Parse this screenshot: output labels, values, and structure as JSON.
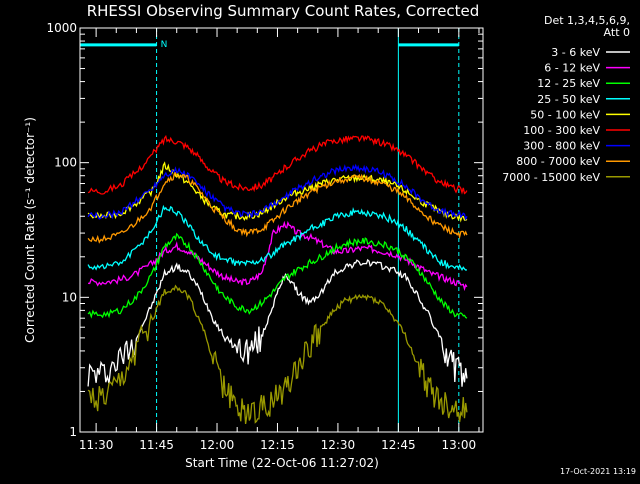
{
  "chart_data": {
    "type": "line",
    "title": "RHESSI Observing Summary Count Rates, Corrected",
    "xlabel": "Start Time (22-Oct-06 11:27:02)",
    "ylabel": "Corrected Count Rate (s⁻¹ detector⁻¹)",
    "yscale": "log",
    "ylim": [
      1,
      1000
    ],
    "y_ticks": [
      {
        "value": 1,
        "label": "1"
      },
      {
        "value": 10,
        "label": "10"
      },
      {
        "value": 100,
        "label": "100"
      },
      {
        "value": 1000,
        "label": "1000"
      }
    ],
    "xlim_minutes": [
      686,
      786
    ],
    "x_ticks": [
      {
        "value": 690,
        "label": "11:30"
      },
      {
        "value": 705,
        "label": "11:45"
      },
      {
        "value": 720,
        "label": "12:00"
      },
      {
        "value": 735,
        "label": "12:15"
      },
      {
        "value": 750,
        "label": "12:30"
      },
      {
        "value": 765,
        "label": "12:45"
      },
      {
        "value": 780,
        "label": "13:00"
      }
    ],
    "legend_header": [
      "Det 1,3,4,5,6,9,",
      "Att 0"
    ],
    "legend_position": "outside-right",
    "x": [
      688,
      692,
      696,
      700,
      704,
      707,
      710,
      713,
      716,
      719,
      722,
      725,
      728,
      731,
      734,
      737,
      740,
      743,
      746,
      749,
      752,
      755,
      758,
      761,
      764,
      767,
      770,
      773,
      776,
      779,
      782
    ],
    "series": [
      {
        "name": "3 - 6 keV",
        "color": "#ffffff",
        "values": [
          2.7,
          2.7,
          3.5,
          5,
          9,
          15,
          17,
          15,
          11,
          7,
          5,
          4.2,
          4,
          5,
          9,
          15,
          11,
          9,
          11,
          15,
          17,
          18,
          18,
          17,
          16,
          14,
          10,
          7,
          4.5,
          3,
          2.5
        ]
      },
      {
        "name": "6 - 12 keV",
        "color": "#ff00ff",
        "values": [
          13,
          13,
          13.5,
          15,
          18,
          22,
          24,
          22,
          19,
          16,
          14,
          13,
          13,
          15,
          30,
          35,
          30,
          28,
          25,
          22,
          22,
          23,
          23,
          22,
          21,
          19,
          17,
          15,
          14,
          13,
          12
        ]
      },
      {
        "name": "12 - 25 keV",
        "color": "#00ff00",
        "values": [
          7.5,
          7.5,
          8,
          10,
          15,
          24,
          28,
          24,
          18,
          13,
          10,
          8.5,
          8,
          9,
          11,
          14,
          16,
          18,
          20,
          23,
          25,
          26,
          26,
          25,
          23,
          20,
          16,
          12,
          9,
          7.5,
          7
        ]
      },
      {
        "name": "25 - 50 keV",
        "color": "#00ffff",
        "values": [
          17,
          17,
          18,
          23,
          32,
          47,
          43,
          34,
          26,
          21,
          19,
          18,
          18,
          19,
          21,
          25,
          28,
          32,
          35,
          39,
          42,
          43,
          42,
          40,
          37,
          32,
          26,
          21,
          18,
          17,
          16
        ]
      },
      {
        "name": "50 - 100 keV",
        "color": "#ffff00",
        "values": [
          40,
          40,
          42,
          50,
          62,
          95,
          82,
          70,
          56,
          46,
          41,
          40,
          40,
          42,
          48,
          55,
          60,
          65,
          70,
          74,
          76,
          77,
          76,
          73,
          68,
          61,
          53,
          47,
          42,
          40,
          38
        ]
      },
      {
        "name": "100 - 300 keV",
        "color": "#ff0000",
        "values": [
          62,
          62,
          68,
          85,
          115,
          150,
          145,
          130,
          105,
          85,
          72,
          66,
          65,
          68,
          78,
          92,
          108,
          122,
          135,
          145,
          150,
          152,
          148,
          140,
          128,
          112,
          95,
          80,
          70,
          64,
          62
        ]
      },
      {
        "name": "300 - 800 keV",
        "color": "#0000ff",
        "values": [
          40,
          40,
          43,
          52,
          65,
          82,
          87,
          80,
          66,
          54,
          46,
          42,
          41,
          43,
          49,
          56,
          64,
          72,
          80,
          87,
          91,
          92,
          89,
          84,
          76,
          66,
          56,
          48,
          43,
          41,
          40
        ]
      },
      {
        "name": "800 - 7000 keV",
        "color": "#ff9900",
        "values": [
          27,
          27,
          29,
          36,
          48,
          72,
          82,
          75,
          60,
          46,
          38,
          32,
          30,
          32,
          37,
          45,
          52,
          60,
          66,
          72,
          76,
          77,
          75,
          70,
          63,
          54,
          45,
          38,
          33,
          30,
          29
        ]
      },
      {
        "name": "7000 - 15000 keV",
        "color": "#999900",
        "values": [
          1.7,
          1.7,
          2.2,
          4,
          7,
          11,
          12,
          10,
          6.5,
          3.5,
          2,
          1.5,
          1.4,
          1.5,
          1.7,
          2.2,
          3.2,
          4.5,
          6,
          8,
          9.5,
          10,
          10,
          9,
          7,
          5,
          3,
          2,
          1.6,
          1.5,
          1.4
        ]
      }
    ],
    "flag_bars": [
      {
        "start": 686,
        "end": 705,
        "value": 750,
        "color": "#00ffff",
        "label": "N"
      },
      {
        "start": 765,
        "end": 780,
        "value": 750,
        "color": "#00ffff",
        "label": ""
      }
    ],
    "vertical_markers": [
      {
        "x": 705,
        "style": "dashed",
        "color": "#00ffff"
      },
      {
        "x": 765,
        "style": "solid",
        "color": "#00ffff"
      },
      {
        "x": 780,
        "style": "dashed",
        "color": "#00ffff"
      }
    ]
  },
  "footer": {
    "timestamp": "17-Oct-2021 13:19"
  }
}
